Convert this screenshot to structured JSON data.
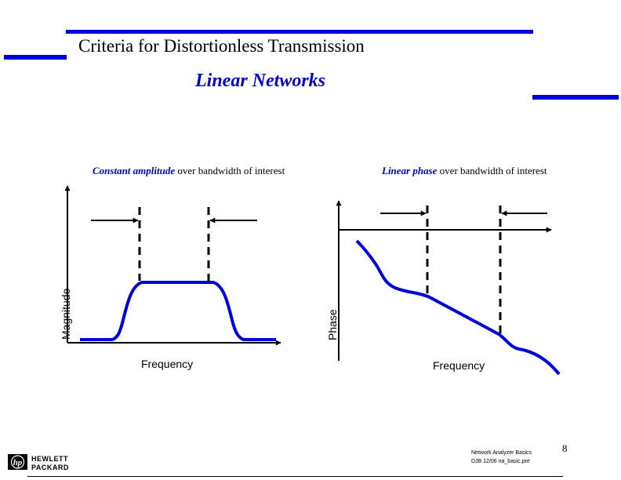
{
  "title": "Criteria for Distortionless Transmission",
  "subtitle": "Linear Networks",
  "left_panel": {
    "caption_emphasis": "Constant amplitude",
    "caption_rest": " over bandwidth of interest",
    "y_label": "Magnitude",
    "x_label": "Frequency"
  },
  "right_panel": {
    "caption_emphasis": "Linear phase",
    "caption_rest": " over bandwidth of interest",
    "y_label": "Phase",
    "x_label": "Frequency"
  },
  "footer": {
    "line1": "Network Analyzer Basics",
    "line2": "DJB   12/06   na_basic.pre",
    "page_number": "8"
  },
  "logo": {
    "line1": "HEWLETT",
    "line2": "PACKARD"
  },
  "colors": {
    "accent": "#0000dd",
    "curve": "#0000dd",
    "text": "#000000"
  }
}
